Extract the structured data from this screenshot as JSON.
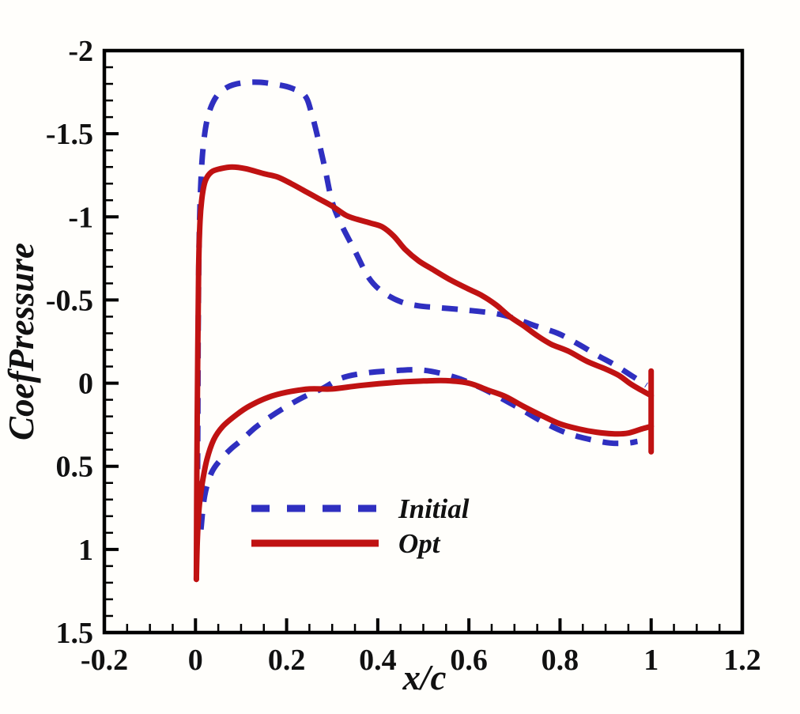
{
  "chart_data": {
    "type": "line",
    "title": "",
    "xlabel": "x/c",
    "ylabel": "CoefPressure",
    "axis_color": "#000000",
    "text_color": "#111111",
    "background_color": "#fffefb",
    "grid": false,
    "xaxis": {
      "min": -0.2,
      "max": 1.2,
      "major_tick_step": 0.2,
      "minor_tick_step": 0.05,
      "tick_labels": [
        "-0.2",
        "0",
        "0.2",
        "0.4",
        "0.6",
        "0.8",
        "1",
        "1.2"
      ]
    },
    "yaxis": {
      "min": -2,
      "max": 1.5,
      "major_tick_step": 0.5,
      "minor_tick_step": 0.1,
      "tick_labels": [
        "-2",
        "-1.5",
        "-1",
        "-0.5",
        "0",
        "0.5",
        "1",
        "1.5"
      ],
      "note": "pressure coefficient axis, negative values plotted upward"
    },
    "legend": {
      "position": "inside-lower-left",
      "entries": [
        "Initial",
        "Opt"
      ]
    },
    "series": [
      {
        "name": "Initial",
        "color": "#2F2FC0",
        "line_style": "dashed",
        "segments": {
          "upper_surface": [
            [
              0.004,
              0.85
            ],
            [
              0.005,
              0.3
            ],
            [
              0.006,
              -0.3
            ],
            [
              0.008,
              -0.85
            ],
            [
              0.012,
              -1.22
            ],
            [
              0.018,
              -1.45
            ],
            [
              0.028,
              -1.61
            ],
            [
              0.045,
              -1.72
            ],
            [
              0.07,
              -1.78
            ],
            [
              0.1,
              -1.805
            ],
            [
              0.14,
              -1.81
            ],
            [
              0.18,
              -1.795
            ],
            [
              0.21,
              -1.775
            ],
            [
              0.24,
              -1.73
            ],
            [
              0.255,
              -1.62
            ],
            [
              0.27,
              -1.46
            ],
            [
              0.285,
              -1.28
            ],
            [
              0.3,
              -1.09
            ],
            [
              0.32,
              -0.955
            ],
            [
              0.35,
              -0.795
            ],
            [
              0.38,
              -0.635
            ],
            [
              0.41,
              -0.55
            ],
            [
              0.45,
              -0.49
            ],
            [
              0.49,
              -0.465
            ],
            [
              0.53,
              -0.455
            ],
            [
              0.58,
              -0.443
            ],
            [
              0.62,
              -0.432
            ],
            [
              0.66,
              -0.418
            ],
            [
              0.7,
              -0.39
            ],
            [
              0.745,
              -0.345
            ],
            [
              0.795,
              -0.3
            ],
            [
              0.84,
              -0.235
            ],
            [
              0.88,
              -0.17
            ],
            [
              0.92,
              -0.11
            ],
            [
              0.96,
              -0.04
            ],
            [
              0.99,
              0.012
            ]
          ],
          "lower_surface": [
            [
              0.012,
              0.88
            ],
            [
              0.02,
              0.68
            ],
            [
              0.035,
              0.54
            ],
            [
              0.055,
              0.46
            ],
            [
              0.08,
              0.39
            ],
            [
              0.1,
              0.345
            ],
            [
              0.13,
              0.27
            ],
            [
              0.16,
              0.21
            ],
            [
              0.2,
              0.14
            ],
            [
              0.24,
              0.08
            ],
            [
              0.28,
              0.03
            ],
            [
              0.32,
              -0.03
            ],
            [
              0.37,
              -0.06
            ],
            [
              0.43,
              -0.074
            ],
            [
              0.5,
              -0.078
            ],
            [
              0.57,
              -0.035
            ],
            [
              0.62,
              0.02
            ],
            [
              0.65,
              0.06
            ],
            [
              0.71,
              0.15
            ],
            [
              0.76,
              0.23
            ],
            [
              0.81,
              0.295
            ],
            [
              0.86,
              0.335
            ],
            [
              0.91,
              0.36
            ],
            [
              0.95,
              0.36
            ],
            [
              0.97,
              0.35
            ]
          ]
        }
      },
      {
        "name": "Opt",
        "color": "#C01212",
        "line_style": "solid",
        "segments": {
          "upper_surface": [
            [
              0.002,
              1.18
            ],
            [
              0.003,
              0.55
            ],
            [
              0.005,
              -0.2
            ],
            [
              0.007,
              -0.7
            ],
            [
              0.01,
              -0.98
            ],
            [
              0.015,
              -1.13
            ],
            [
              0.022,
              -1.22
            ],
            [
              0.035,
              -1.27
            ],
            [
              0.055,
              -1.29
            ],
            [
              0.08,
              -1.3
            ],
            [
              0.11,
              -1.29
            ],
            [
              0.15,
              -1.26
            ],
            [
              0.18,
              -1.24
            ],
            [
              0.21,
              -1.2
            ],
            [
              0.24,
              -1.155
            ],
            [
              0.27,
              -1.11
            ],
            [
              0.3,
              -1.065
            ],
            [
              0.33,
              -1.01
            ],
            [
              0.355,
              -0.985
            ],
            [
              0.385,
              -0.962
            ],
            [
              0.41,
              -0.94
            ],
            [
              0.435,
              -0.885
            ],
            [
              0.46,
              -0.805
            ],
            [
              0.49,
              -0.735
            ],
            [
              0.52,
              -0.685
            ],
            [
              0.56,
              -0.62
            ],
            [
              0.6,
              -0.565
            ],
            [
              0.63,
              -0.525
            ],
            [
              0.66,
              -0.47
            ],
            [
              0.69,
              -0.4
            ],
            [
              0.72,
              -0.345
            ],
            [
              0.75,
              -0.285
            ],
            [
              0.78,
              -0.235
            ],
            [
              0.82,
              -0.19
            ],
            [
              0.86,
              -0.13
            ],
            [
              0.9,
              -0.085
            ],
            [
              0.93,
              -0.045
            ],
            [
              0.955,
              0.005
            ],
            [
              0.98,
              0.045
            ],
            [
              1.0,
              0.075
            ]
          ],
          "lower_surface": [
            [
              0.002,
              1.18
            ],
            [
              0.004,
              0.95
            ],
            [
              0.008,
              0.75
            ],
            [
              0.015,
              0.6
            ],
            [
              0.025,
              0.46
            ],
            [
              0.04,
              0.34
            ],
            [
              0.06,
              0.26
            ],
            [
              0.09,
              0.19
            ],
            [
              0.12,
              0.135
            ],
            [
              0.16,
              0.085
            ],
            [
              0.2,
              0.055
            ],
            [
              0.25,
              0.035
            ],
            [
              0.3,
              0.035
            ],
            [
              0.36,
              0.015
            ],
            [
              0.44,
              -0.005
            ],
            [
              0.5,
              -0.013
            ],
            [
              0.55,
              -0.015
            ],
            [
              0.6,
              0.0
            ],
            [
              0.64,
              0.04
            ],
            [
              0.68,
              0.08
            ],
            [
              0.72,
              0.14
            ],
            [
              0.76,
              0.195
            ],
            [
              0.8,
              0.245
            ],
            [
              0.84,
              0.275
            ],
            [
              0.88,
              0.295
            ],
            [
              0.92,
              0.305
            ],
            [
              0.95,
              0.3
            ],
            [
              0.98,
              0.275
            ],
            [
              1.0,
              0.26
            ]
          ],
          "trailing_edge_bar": [
            [
              1.0,
              -0.073
            ],
            [
              1.0,
              0.413
            ]
          ]
        }
      }
    ]
  }
}
